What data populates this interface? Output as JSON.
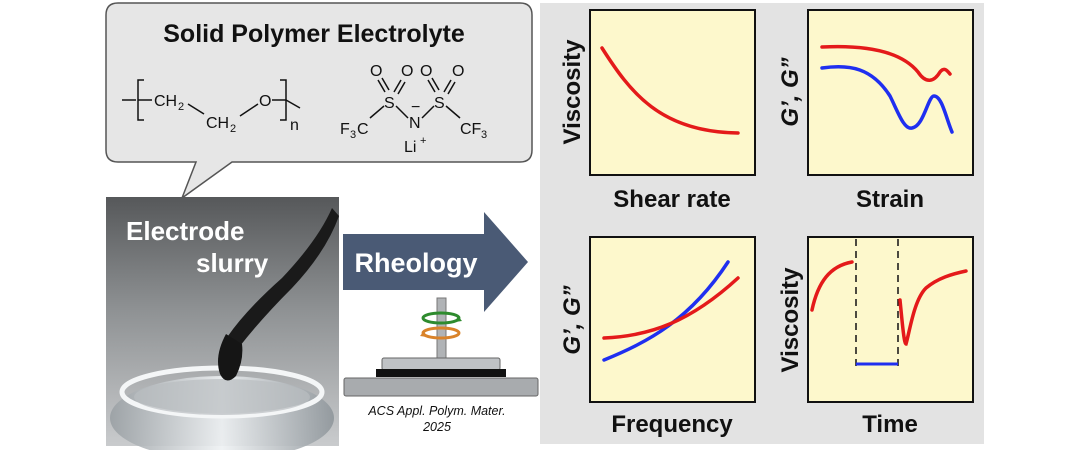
{
  "callout": {
    "title": "Solid Polymer Electrolyte",
    "peo": {
      "ch2_a": "CH",
      "ch2_b": "CH",
      "sub2": "2",
      "oxygen": "O",
      "repeat": "n"
    },
    "litfsi": {
      "o_labels": [
        "O",
        "O",
        "O",
        "O"
      ],
      "s_labels": [
        "S",
        "S"
      ],
      "nitrogen": "N",
      "minus": "−",
      "cf3_left": "F",
      "cf3_right": "CF",
      "c_left": "C",
      "sub3": "3",
      "lithium": "Li",
      "plus": "+"
    }
  },
  "photo": {
    "label_line1": "Electrode",
    "label_line2": "slurry"
  },
  "arrow": {
    "label": "Rheology"
  },
  "citation": {
    "line1": "ACS Appl. Polym. Mater.",
    "line2": "2025"
  },
  "colors": {
    "panel_bg": "#fdf8cc",
    "red_curve": "#e41a1a",
    "blue_curve": "#1f2ff0",
    "arrow": "#4a5a75",
    "backdrop": "#e3e3e3"
  },
  "panels": [
    {
      "id": "shear",
      "xlabel": "Shear rate",
      "ylabel": "Viscosity"
    },
    {
      "id": "strain",
      "xlabel": "Strain",
      "ylabel": "G’, G”"
    },
    {
      "id": "frequency",
      "xlabel": "Frequency",
      "ylabel": "G’, G”"
    },
    {
      "id": "time",
      "xlabel": "Time",
      "ylabel": "Viscosity"
    }
  ]
}
